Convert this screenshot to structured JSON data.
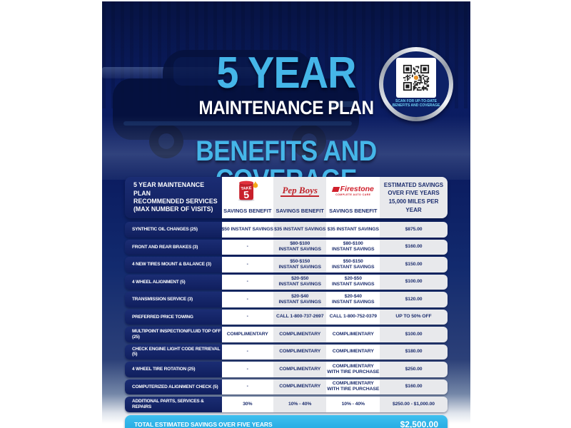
{
  "colors": {
    "accent_blue": "#45b6e8",
    "flyer_navy": "#0a1a5e",
    "cell_navy": "#14246a",
    "column_gray": "#e8e9ec",
    "total_bar_cyan": "#27b2e7",
    "brand_red": "#c8202b"
  },
  "hero": {
    "title": "5 YEAR",
    "subtitle": "MAINTENANCE PLAN",
    "section_heading": "BENEFITS AND COVERAGE",
    "qr_caption": "SCAN FOR UP-TO-DATE\nBENEFITS AND COVERAGE"
  },
  "table": {
    "header": {
      "services_label": "5 YEAR MAINTENANCE PLAN\nRECOMMENDED SERVICES\n(MAX NUMBER OF VISITS)",
      "savings_benefit_label": "SAVINGS BENEFIT",
      "brands": {
        "take5": "TAKE 5",
        "pepboys": "Pep Boys",
        "firestone": "Firestone",
        "firestone_sub": "COMPLETE AUTO CARE"
      },
      "estimated_label": "ESTIMATED SAVINGS\nOVER FIVE YEARS\n15,000 MILES PER YEAR"
    },
    "rows": [
      {
        "service": "SYNTHETIC OIL CHANGES (25)",
        "take5": "$50 INSTANT SAVINGS",
        "pepboys": "$35 INSTANT SAVINGS",
        "firestone": "$35 INSTANT SAVINGS",
        "estimated": "$875.00"
      },
      {
        "service": "FRONT AND REAR BRAKES (3)",
        "take5": "-",
        "pepboys": "$80-$100\nINSTANT SAVINGS",
        "firestone": "$80-$100\nINSTANT SAVINGS",
        "estimated": "$160.00"
      },
      {
        "service": "4 NEW TIRES MOUNT & BALANCE (3)",
        "take5": "-",
        "pepboys": "$50-$150\nINSTANT SAVINGS",
        "firestone": "$50-$150\nINSTANT SAVINGS",
        "estimated": "$150.00"
      },
      {
        "service": "4 WHEEL ALIGNMENT (5)",
        "take5": "-",
        "pepboys": "$20-$50\nINSTANT SAVINGS",
        "firestone": "$20-$50\nINSTANT SAVINGS",
        "estimated": "$100.00"
      },
      {
        "service": "TRANSMISSION SERVICE (3)",
        "take5": "-",
        "pepboys": "$20-$40\nINSTANT SAVINGS",
        "firestone": "$20-$40\nINSTANT SAVINGS",
        "estimated": "$120.00"
      },
      {
        "service": "PREFERRED PRICE TOWING",
        "take5": "-",
        "pepboys": "CALL 1-800-737-2697",
        "firestone": "CALL 1-800-752-0379",
        "estimated": "UP TO 50% OFF"
      },
      {
        "service": "MULTIPOINT INSPECTION/FLUID TOP OFF (25)",
        "take5": "COMPLIMENTARY",
        "pepboys": "COMPLIMENTARY",
        "firestone": "COMPLIMENTARY",
        "estimated": "$100.00"
      },
      {
        "service": "CHECK ENGINE LIGHT CODE RETRIEVAL (5)",
        "take5": "-",
        "pepboys": "COMPLIMENTARY",
        "firestone": "COMPLIMENTARY",
        "estimated": "$180.00"
      },
      {
        "service": "4 WHEEL TIRE ROTATION (25)",
        "take5": "-",
        "pepboys": "COMPLIMENTARY",
        "firestone": "COMPLIMENTARY\nWITH TIRE PURCHASE",
        "estimated": "$250.00"
      },
      {
        "service": "COMPUTERIZED ALIGNMENT CHECK (5)",
        "take5": "-",
        "pepboys": "COMPLIMENTARY",
        "firestone": "COMPLIMENTARY\nWITH TIRE PURCHASE",
        "estimated": "$160.00"
      },
      {
        "service": "ADDITIONAL PARTS, SERVICES & REPAIRS",
        "take5": "30%",
        "pepboys": "10% - 40%",
        "firestone": "10% - 40%",
        "estimated": "$250.00 - $1,000.00"
      }
    ],
    "total": {
      "label": "TOTAL ESTIMATED SAVINGS OVER FIVE YEARS",
      "value": "$2,500.00"
    }
  }
}
